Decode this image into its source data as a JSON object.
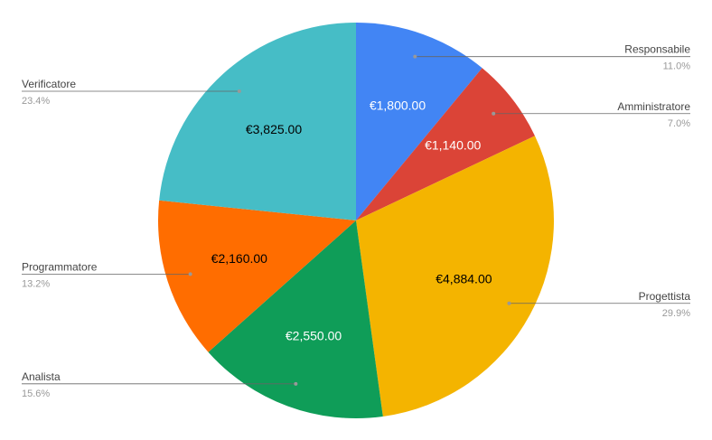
{
  "chart_data": {
    "type": "pie",
    "title": "",
    "currency_format": "€",
    "slices": [
      {
        "name": "Responsabile",
        "value": 1800,
        "value_label": "€1,800.00",
        "percent_label": "11.0%",
        "color": "#4285F4",
        "text_color": "#ffffff"
      },
      {
        "name": "Amministratore",
        "value": 1140,
        "value_label": "€1,140.00",
        "percent_label": "7.0%",
        "color": "#DB4437",
        "text_color": "#ffffff"
      },
      {
        "name": "Progettista",
        "value": 4884,
        "value_label": "€4,884.00",
        "percent_label": "29.9%",
        "color": "#F4B400",
        "text_color": "#000000"
      },
      {
        "name": "Analista",
        "value": 2550,
        "value_label": "€2,550.00",
        "percent_label": "15.6%",
        "color": "#0F9D58",
        "text_color": "#ffffff"
      },
      {
        "name": "Programmatore",
        "value": 2160,
        "value_label": "€2,160.00",
        "percent_label": "13.2%",
        "color": "#FF6D00",
        "text_color": "#000000"
      },
      {
        "name": "Verificatore",
        "value": 3825,
        "value_label": "€3,825.00",
        "percent_label": "23.4%",
        "color": "#46BDC6",
        "text_color": "#000000"
      }
    ],
    "start_angle": "top",
    "direction": "clockwise",
    "legend": "callouts"
  }
}
